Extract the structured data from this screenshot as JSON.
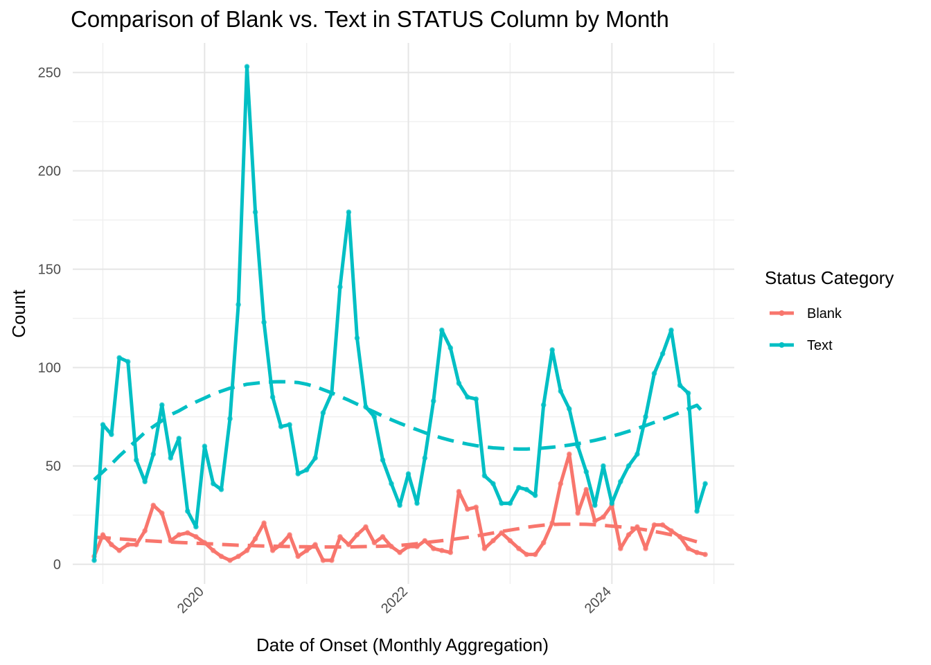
{
  "chart_data": {
    "type": "line",
    "title": "Comparison of Blank vs. Text in STATUS Column by Month",
    "xlabel": "Date of Onset (Monthly Aggregation)",
    "ylabel": "Count",
    "ylim": [
      -10,
      265
    ],
    "xlim": [
      "2018-09-15",
      "2025-03-15"
    ],
    "x_ticks": [
      "2020-01-01",
      "2022-01-01",
      "2024-01-01"
    ],
    "x_tick_labels": [
      "2020",
      "2022",
      "2024"
    ],
    "x_tick_rotation": "45",
    "y_ticks": [
      0,
      50,
      100,
      150,
      200,
      250
    ],
    "y_tick_labels": [
      "0",
      "50",
      "100",
      "150",
      "200",
      "250"
    ],
    "grid": true,
    "legend": {
      "title": "Status Category",
      "position": "right",
      "entries": [
        "Blank",
        "Text"
      ]
    },
    "x": [
      "2018-12-01",
      "2019-01-01",
      "2019-02-01",
      "2019-03-01",
      "2019-04-01",
      "2019-05-01",
      "2019-06-01",
      "2019-07-01",
      "2019-08-01",
      "2019-09-01",
      "2019-10-01",
      "2019-11-01",
      "2019-12-01",
      "2020-01-01",
      "2020-02-01",
      "2020-03-01",
      "2020-04-01",
      "2020-05-01",
      "2020-06-01",
      "2020-07-01",
      "2020-08-01",
      "2020-09-01",
      "2020-10-01",
      "2020-11-01",
      "2020-12-01",
      "2021-01-01",
      "2021-02-01",
      "2021-03-01",
      "2021-04-01",
      "2021-05-01",
      "2021-06-01",
      "2021-07-01",
      "2021-08-01",
      "2021-09-01",
      "2021-10-01",
      "2021-11-01",
      "2021-12-01",
      "2022-01-01",
      "2022-02-01",
      "2022-03-01",
      "2022-04-01",
      "2022-05-01",
      "2022-06-01",
      "2022-07-01",
      "2022-08-01",
      "2022-09-01",
      "2022-10-01",
      "2022-11-01",
      "2022-12-01",
      "2023-01-01",
      "2023-02-01",
      "2023-03-01",
      "2023-04-01",
      "2023-05-01",
      "2023-06-01",
      "2023-07-01",
      "2023-08-01",
      "2023-09-01",
      "2023-10-01",
      "2023-11-01",
      "2023-12-01",
      "2024-01-01",
      "2024-02-01",
      "2024-03-01",
      "2024-04-01",
      "2024-05-01",
      "2024-06-01",
      "2024-07-01",
      "2024-08-01",
      "2024-09-01",
      "2024-10-01",
      "2024-11-01",
      "2024-12-01"
    ],
    "series": [
      {
        "name": "Blank",
        "color": "#F8766D",
        "values": [
          4,
          15,
          10,
          7,
          10,
          10,
          17,
          30,
          26,
          12,
          15,
          16,
          14,
          11,
          7,
          4,
          2,
          4,
          7,
          13,
          21,
          7,
          10,
          15,
          4,
          7,
          10,
          2,
          2,
          14,
          10,
          15,
          19,
          11,
          14,
          9,
          6,
          9,
          9,
          12,
          8,
          7,
          6,
          37,
          28,
          29,
          8,
          12,
          16,
          12,
          8,
          5,
          5,
          11,
          21,
          41,
          56,
          26,
          38,
          22,
          24,
          30,
          8,
          15,
          19,
          8,
          20,
          20,
          17,
          14,
          8,
          6,
          5
        ],
        "trend": [
          13.8,
          13.5,
          13.2,
          12.9,
          12.6,
          12.3,
          12.0,
          11.8,
          11.5,
          11.3,
          11.1,
          10.9,
          10.7,
          10.5,
          10.3,
          10.1,
          9.9,
          9.7,
          9.6,
          9.4,
          9.3,
          9.2,
          9.1,
          9.0,
          8.9,
          8.9,
          8.8,
          8.8,
          8.8,
          8.8,
          8.8,
          8.9,
          9.0,
          9.1,
          9.2,
          9.4,
          9.6,
          10.0,
          10.5,
          11.0,
          11.5,
          12.0,
          12.5,
          13.1,
          13.7,
          14.4,
          15.1,
          15.9,
          16.7,
          17.4,
          18.1,
          18.8,
          19.4,
          19.9,
          20.2,
          20.4,
          20.4,
          20.4,
          20.3,
          20.1,
          19.8,
          19.4,
          19.0,
          18.6,
          18.1,
          17.5,
          16.7,
          15.9,
          15.0,
          13.9,
          12.7,
          11.4,
          10.0
        ]
      },
      {
        "name": "Text",
        "color": "#00BFC4",
        "values": [
          2,
          71,
          66,
          105,
          103,
          53,
          42,
          56,
          81,
          54,
          64,
          27,
          19,
          60,
          41,
          38,
          74,
          132,
          253,
          179,
          123,
          85,
          70,
          71,
          46,
          48,
          54,
          77,
          87,
          141,
          179,
          115,
          80,
          75,
          53,
          41,
          30,
          46,
          31,
          54,
          83,
          119,
          110,
          92,
          85,
          84,
          45,
          41,
          31,
          31,
          39,
          38,
          35,
          81,
          109,
          88,
          79,
          60,
          47,
          30,
          50,
          31,
          42,
          50,
          56,
          75,
          97,
          107,
          119,
          91,
          87,
          27,
          41
        ],
        "trend": [
          43,
          47,
          51,
          55,
          59,
          63,
          67,
          70,
          73,
          76,
          78,
          80.5,
          82.5,
          84.5,
          86.5,
          88,
          89.5,
          90.5,
          91.5,
          92,
          92.5,
          92.7,
          92.8,
          92.7,
          92.4,
          91.5,
          90.3,
          88.8,
          87.1,
          85.3,
          83.4,
          81.4,
          79.4,
          77.4,
          75.4,
          73.5,
          71.7,
          70.0,
          68.4,
          66.9,
          65.5,
          64.2,
          63.0,
          62.0,
          61.1,
          60.3,
          59.7,
          59.2,
          58.9,
          58.7,
          58.6,
          58.6,
          58.8,
          59.1,
          59.5,
          60.0,
          60.6,
          61.3,
          62.1,
          63.0,
          64.0,
          65.1,
          66.3,
          67.6,
          69.0,
          70.5,
          72.1,
          73.7,
          75.4,
          77.2,
          79.0,
          80.8,
          76.0
        ]
      }
    ]
  }
}
